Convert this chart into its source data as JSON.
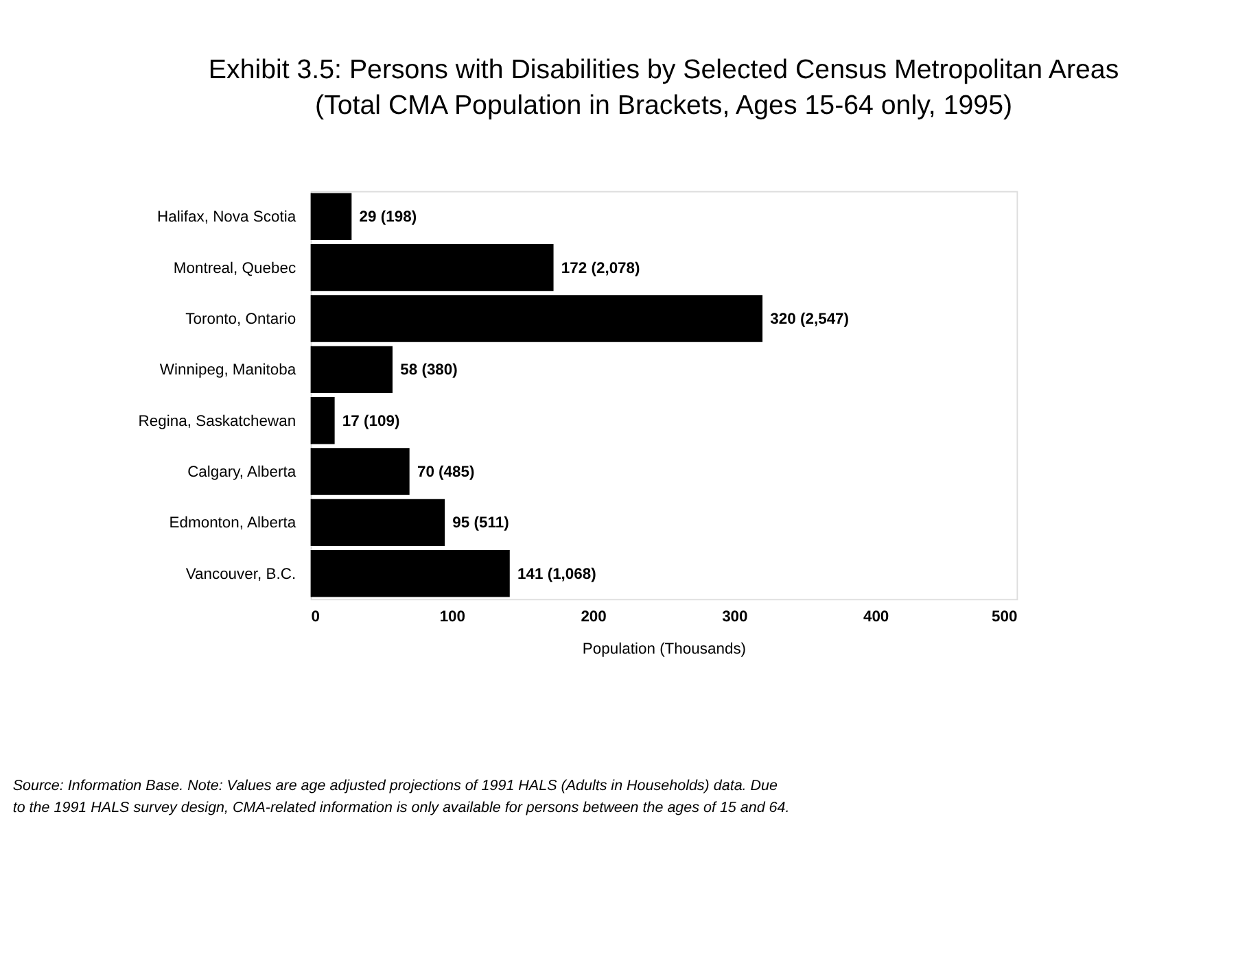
{
  "chart_data": {
    "type": "bar",
    "orientation": "horizontal",
    "title": [
      "Exhibit 3.5: Persons with Disabilities by Selected Census Metropolitan Areas",
      "(Total CMA Population in Brackets, Ages 15-64 only, 1995)"
    ],
    "xlabel": "Population (Thousands)",
    "categories": [
      "Halifax, Nova Scotia",
      "Montreal, Quebec",
      "Toronto, Ontario",
      "Winnipeg, Manitoba",
      "Regina, Saskatchewan",
      "Calgary, Alberta",
      "Edmonton, Alberta",
      "Vancouver, B.C."
    ],
    "values": [
      29,
      172,
      320,
      58,
      17,
      70,
      95,
      141
    ],
    "value_labels": [
      "29 (198)",
      "172 (2,078)",
      "320 (2,547)",
      "58 (380)",
      "17 (109)",
      "70 (485)",
      "95 (511)",
      "141 (1,068)"
    ],
    "color": "#000000",
    "xlim": [
      0,
      500
    ],
    "xticks": [
      0,
      100,
      200,
      300,
      400,
      500
    ],
    "grid": false,
    "annotations": [
      "Source: Information Base.  Note: Values are age adjusted projections of 1991 HALS (Adults in Households) data.  Due",
      "to the 1991 HALS survey design, CMA-related information is only available for persons between the ages of 15 and 64."
    ]
  }
}
